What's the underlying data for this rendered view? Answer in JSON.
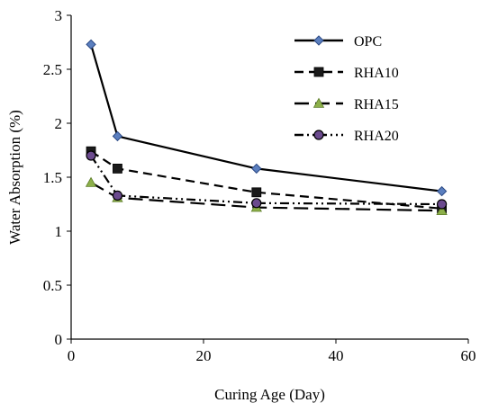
{
  "chart_data": {
    "type": "line",
    "xlabel": "Curing Age (Day)",
    "ylabel": "Water Absorption (%)",
    "xlim": [
      0,
      60
    ],
    "ylim": [
      0,
      3
    ],
    "xticks": [
      0,
      20,
      40,
      60
    ],
    "yticks": [
      0,
      0.5,
      1,
      1.5,
      2,
      2.5,
      3
    ],
    "xtick_labels": [
      "0",
      "20",
      "40",
      "60"
    ],
    "ytick_labels": [
      "0",
      "0.5",
      "1",
      "1.5",
      "2",
      "2.5",
      "3"
    ],
    "grid": false,
    "legend_position": "top-right",
    "x": [
      3,
      7,
      28,
      56
    ],
    "series": [
      {
        "name": "OPC",
        "values": [
          2.73,
          1.88,
          1.58,
          1.37
        ],
        "color": "#000000",
        "line": "solid",
        "marker": "diamond",
        "marker_color": "#5b7fbf"
      },
      {
        "name": "RHA10",
        "values": [
          1.74,
          1.58,
          1.36,
          1.21
        ],
        "color": "#000000",
        "line": "dash",
        "marker": "square",
        "marker_color": "#1a1a1a"
      },
      {
        "name": "RHA15",
        "values": [
          1.45,
          1.31,
          1.22,
          1.19
        ],
        "color": "#000000",
        "line": "longdash",
        "marker": "triangle",
        "marker_color": "#8db04a"
      },
      {
        "name": "RHA20",
        "values": [
          1.7,
          1.33,
          1.26,
          1.25
        ],
        "color": "#000000",
        "line": "dashdotdot",
        "marker": "circle",
        "marker_color": "#6b4a8e"
      }
    ]
  }
}
